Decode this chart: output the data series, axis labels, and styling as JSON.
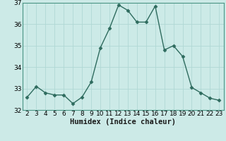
{
  "x": [
    2,
    3,
    4,
    5,
    6,
    7,
    8,
    9,
    10,
    11,
    12,
    13,
    14,
    15,
    16,
    17,
    18,
    19,
    20,
    21,
    22,
    23
  ],
  "y": [
    32.6,
    33.1,
    32.8,
    32.7,
    32.7,
    32.3,
    32.6,
    33.3,
    34.9,
    35.8,
    36.9,
    36.65,
    36.1,
    36.1,
    36.85,
    34.8,
    35.0,
    34.5,
    33.05,
    32.8,
    32.55,
    32.45
  ],
  "line_color": "#2e6b5e",
  "marker": "D",
  "marker_color": "#2e6b5e",
  "bg_color": "#cceae7",
  "grid_color": "#b0d8d4",
  "xlabel": "Humidex (Indice chaleur)",
  "ylim": [
    32,
    37
  ],
  "xlim": [
    1.5,
    23.5
  ],
  "yticks": [
    32,
    33,
    34,
    35,
    36,
    37
  ],
  "xticks": [
    2,
    3,
    4,
    5,
    6,
    7,
    8,
    9,
    10,
    11,
    12,
    13,
    14,
    15,
    16,
    17,
    18,
    19,
    20,
    21,
    22,
    23
  ],
  "xlabel_fontsize": 7.5,
  "tick_fontsize": 6.5,
  "line_width": 1.0,
  "marker_size": 2.5
}
